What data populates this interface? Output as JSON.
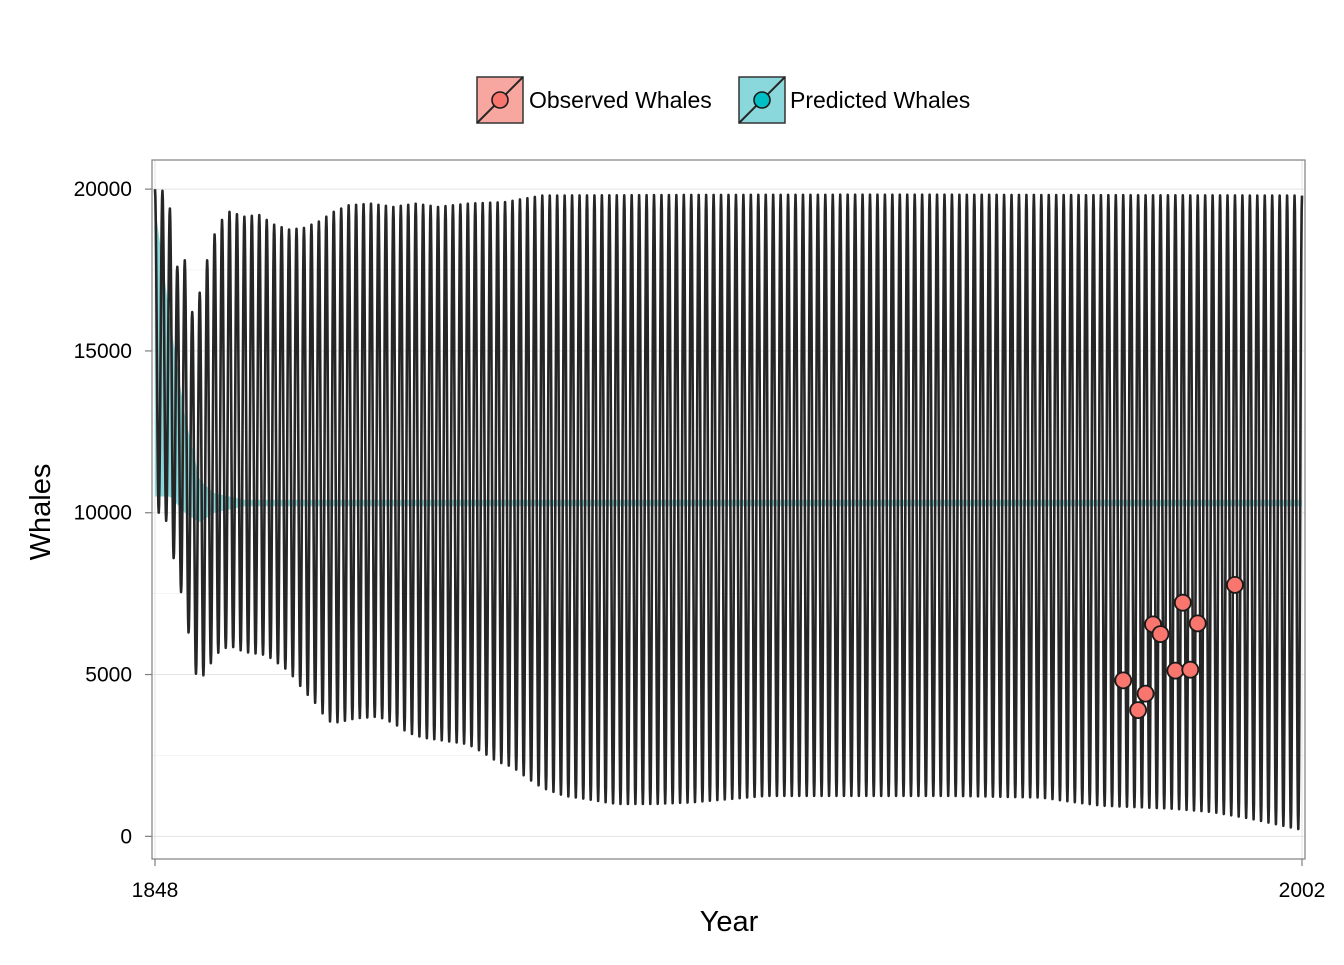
{
  "chart_data": {
    "type": "line",
    "title": "",
    "xlabel": "Year",
    "ylabel": "Whales",
    "xlim": [
      1848,
      2002
    ],
    "ylim": [
      -700,
      20900
    ],
    "x_ticks": [
      1848,
      2002
    ],
    "x_tick_labels": [
      "1848",
      "2002"
    ],
    "y_ticks": [
      0,
      5000,
      10000,
      15000,
      20000
    ],
    "y_tick_labels": [
      "0",
      "5000",
      "10000",
      "15000",
      "20000"
    ],
    "grid": true,
    "legend_position": "top",
    "legend": [
      {
        "label": "Observed Whales",
        "color": "#F8766D"
      },
      {
        "label": "Predicted Whales",
        "color": "#00BFC4"
      }
    ],
    "series": [
      {
        "name": "Predicted Whales",
        "kind": "oscillating line with ribbon",
        "period_years": 1,
        "color": "#00BFC4",
        "line_color": "#262626",
        "peak_envelope": [
          [
            1848,
            20000
          ],
          [
            1849,
            19950
          ],
          [
            1850,
            19400
          ],
          [
            1851,
            17600
          ],
          [
            1852,
            17800
          ],
          [
            1853,
            16200
          ],
          [
            1854,
            16800
          ],
          [
            1855,
            17800
          ],
          [
            1856,
            18600
          ],
          [
            1857,
            19050
          ],
          [
            1858,
            19300
          ],
          [
            1860,
            19150
          ],
          [
            1862,
            19200
          ],
          [
            1864,
            18900
          ],
          [
            1866,
            18750
          ],
          [
            1868,
            18800
          ],
          [
            1870,
            19000
          ],
          [
            1872,
            19300
          ],
          [
            1874,
            19500
          ],
          [
            1877,
            19550
          ],
          [
            1880,
            19450
          ],
          [
            1883,
            19550
          ],
          [
            1886,
            19450
          ],
          [
            1890,
            19550
          ],
          [
            1895,
            19600
          ],
          [
            1900,
            19800
          ],
          [
            1920,
            19820
          ],
          [
            1950,
            19830
          ],
          [
            1980,
            19810
          ],
          [
            2002,
            19800
          ]
        ],
        "trough_envelope": [
          [
            1848,
            10000
          ],
          [
            1849,
            10000
          ],
          [
            1850,
            9500
          ],
          [
            1851,
            7700
          ],
          [
            1852,
            7400
          ],
          [
            1853,
            5200
          ],
          [
            1854,
            4850
          ],
          [
            1855,
            5100
          ],
          [
            1856,
            5600
          ],
          [
            1858,
            5900
          ],
          [
            1860,
            5700
          ],
          [
            1863,
            5600
          ],
          [
            1866,
            5100
          ],
          [
            1868,
            4500
          ],
          [
            1870,
            4000
          ],
          [
            1871,
            3600
          ],
          [
            1872,
            3500
          ],
          [
            1875,
            3650
          ],
          [
            1878,
            3700
          ],
          [
            1880,
            3500
          ],
          [
            1882,
            3200
          ],
          [
            1884,
            3050
          ],
          [
            1887,
            2950
          ],
          [
            1890,
            2850
          ],
          [
            1892,
            2600
          ],
          [
            1894,
            2300
          ],
          [
            1896,
            2150
          ],
          [
            1898,
            1800
          ],
          [
            1900,
            1500
          ],
          [
            1903,
            1250
          ],
          [
            1906,
            1150
          ],
          [
            1910,
            1000
          ],
          [
            1915,
            1000
          ],
          [
            1920,
            1050
          ],
          [
            1925,
            1150
          ],
          [
            1930,
            1250
          ],
          [
            1940,
            1250
          ],
          [
            1955,
            1250
          ],
          [
            1967,
            1200
          ],
          [
            1970,
            1100
          ],
          [
            1975,
            950
          ],
          [
            1985,
            850
          ],
          [
            1990,
            750
          ],
          [
            1995,
            550
          ],
          [
            2000,
            300
          ],
          [
            2002,
            200
          ]
        ],
        "band_upper": [
          [
            1848,
            19500
          ],
          [
            1850,
            16000
          ],
          [
            1852,
            13000
          ],
          [
            1854,
            11000
          ],
          [
            1856,
            10600
          ],
          [
            1860,
            10400
          ],
          [
            2002,
            10400
          ]
        ],
        "band_lower": [
          [
            1848,
            10500
          ],
          [
            1850,
            10500
          ],
          [
            1852,
            10000
          ],
          [
            1854,
            9700
          ],
          [
            1856,
            10000
          ],
          [
            1860,
            10200
          ],
          [
            2002,
            10200
          ]
        ]
      },
      {
        "name": "Observed Whales",
        "kind": "points",
        "color": "#F8766D",
        "points": [
          {
            "x": 1978,
            "y": 4820
          },
          {
            "x": 1980,
            "y": 3900
          },
          {
            "x": 1981,
            "y": 4410
          },
          {
            "x": 1982,
            "y": 6550
          },
          {
            "x": 1983,
            "y": 6250
          },
          {
            "x": 1985,
            "y": 5120
          },
          {
            "x": 1986,
            "y": 7220
          },
          {
            "x": 1987,
            "y": 5150
          },
          {
            "x": 1988,
            "y": 6580
          },
          {
            "x": 1993,
            "y": 7770
          }
        ]
      }
    ]
  }
}
